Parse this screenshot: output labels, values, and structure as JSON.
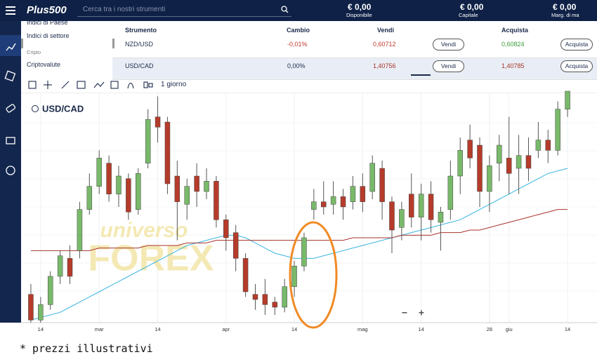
{
  "header": {
    "logo": "Plus500",
    "search_placeholder": "Cerca tra i nostri strumenti",
    "balances": [
      {
        "value": "€ 0,00",
        "label": "Disponibile"
      },
      {
        "value": "€ 0,00",
        "label": "Capitale"
      },
      {
        "value": "€ 0,00",
        "label": "Marg. di ma"
      }
    ]
  },
  "menu": {
    "items": [
      "Indici di Paese",
      "Indici di settore"
    ],
    "section": "Cripto",
    "section_item": "Criptovalute"
  },
  "table": {
    "columns": [
      "Strumento",
      "Cambio",
      "Vendi",
      "Acquista"
    ],
    "rows": [
      [
        "NZD/USD",
        "-0,01%",
        "0,60712",
        "Vendi",
        "0,60824",
        "Acquista"
      ],
      [
        "USD/CAD",
        "0,00%",
        "1,40756",
        "Vendi",
        "1,40785",
        "Acquista"
      ]
    ]
  },
  "toolbar": {
    "timeframe": "1 giorno"
  },
  "zoom": {
    "out": "−",
    "in": "+"
  },
  "footer": "* prezzi illustrativi",
  "chart_data": {
    "type": "candlestick",
    "title": "USD/CAD",
    "watermark": [
      "universo",
      "FOREX"
    ],
    "up_color": "#78b96a",
    "down_color": "#b53b2a",
    "ylim": [
      1.33,
      1.42
    ],
    "categories": [
      null,
      "14",
      null,
      null,
      null,
      null,
      null,
      "mar",
      null,
      null,
      null,
      null,
      null,
      "14",
      null,
      null,
      null,
      null,
      null,
      null,
      "apr",
      null,
      null,
      null,
      null,
      null,
      null,
      "14",
      null,
      null,
      null,
      null,
      null,
      null,
      "mag",
      null,
      null,
      null,
      null,
      null,
      "14",
      null,
      null,
      null,
      null,
      null,
      null,
      "28",
      null,
      "giu",
      null,
      null,
      null,
      null,
      null,
      "14"
    ],
    "open": [
      1.341,
      1.331,
      1.337,
      1.348,
      1.355,
      1.358,
      1.374,
      1.383,
      1.392,
      1.38,
      1.386,
      1.374,
      1.392,
      1.41,
      1.408,
      1.387,
      1.376,
      1.387,
      1.381,
      1.385,
      1.37,
      1.365,
      1.355,
      1.341,
      1.341,
      1.338,
      1.336,
      1.344,
      1.352,
      1.374,
      1.377,
      1.376,
      1.379,
      1.377,
      1.383,
      1.381,
      1.39,
      1.377,
      1.367,
      1.38,
      1.371,
      1.38,
      1.369,
      1.374,
      1.387,
      1.401,
      1.399,
      1.381,
      1.392,
      1.394,
      1.39,
      1.395,
      1.397,
      1.401,
      1.397,
      1.413
    ],
    "high": [
      1.345,
      1.34,
      1.35,
      1.358,
      1.36,
      1.377,
      1.388,
      1.397,
      1.395,
      1.391,
      1.388,
      1.39,
      1.413,
      1.418,
      1.41,
      1.393,
      1.386,
      1.392,
      1.39,
      1.387,
      1.372,
      1.368,
      1.357,
      1.345,
      1.347,
      1.34,
      1.347,
      1.354,
      1.365,
      1.382,
      1.385,
      1.385,
      1.382,
      1.387,
      1.388,
      1.395,
      1.393,
      1.379,
      1.377,
      1.388,
      1.384,
      1.385,
      1.375,
      1.393,
      1.402,
      1.407,
      1.402,
      1.395,
      1.403,
      1.41,
      1.403,
      1.402,
      1.408,
      1.405,
      1.416,
      1.42
    ],
    "low": [
      1.33,
      1.33,
      1.335,
      1.345,
      1.345,
      1.355,
      1.372,
      1.38,
      1.377,
      1.375,
      1.37,
      1.372,
      1.39,
      1.4,
      1.38,
      1.362,
      1.37,
      1.375,
      1.378,
      1.367,
      1.358,
      1.35,
      1.34,
      1.335,
      1.333,
      1.333,
      1.334,
      1.34,
      1.35,
      1.37,
      1.372,
      1.372,
      1.37,
      1.374,
      1.373,
      1.378,
      1.37,
      1.357,
      1.362,
      1.367,
      1.362,
      1.365,
      1.358,
      1.37,
      1.38,
      1.39,
      1.375,
      1.373,
      1.385,
      1.38,
      1.38,
      1.385,
      1.394,
      1.392,
      1.395,
      1.41
    ],
    "close": [
      1.331,
      1.337,
      1.348,
      1.356,
      1.348,
      1.374,
      1.383,
      1.394,
      1.38,
      1.387,
      1.373,
      1.388,
      1.409,
      1.406,
      1.384,
      1.377,
      1.383,
      1.381,
      1.385,
      1.37,
      1.363,
      1.355,
      1.342,
      1.339,
      1.337,
      1.336,
      1.344,
      1.352,
      1.363,
      1.377,
      1.375,
      1.379,
      1.375,
      1.383,
      1.377,
      1.392,
      1.377,
      1.366,
      1.374,
      1.371,
      1.38,
      1.37,
      1.373,
      1.387,
      1.397,
      1.394,
      1.381,
      1.391,
      1.399,
      1.388,
      1.395,
      1.39,
      1.401,
      1.397,
      1.413,
      1.42
    ],
    "overlays": [
      {
        "color": "#3bb5e0",
        "values": [
          1.331,
          1.332,
          1.333,
          1.334,
          1.336,
          1.338,
          1.34,
          1.342,
          1.344,
          1.346,
          1.348,
          1.35,
          1.352,
          1.354,
          1.356,
          1.358,
          1.36,
          1.361,
          1.362,
          1.363,
          1.364,
          1.364,
          1.363,
          1.361,
          1.359,
          1.357,
          1.356,
          1.355,
          1.355,
          1.355,
          1.356,
          1.357,
          1.358,
          1.359,
          1.36,
          1.361,
          1.362,
          1.363,
          1.364,
          1.365,
          1.366,
          1.367,
          1.368,
          1.369,
          1.37,
          1.372,
          1.374,
          1.376,
          1.378,
          1.38,
          1.382,
          1.384,
          1.386,
          1.388,
          1.389,
          1.39
        ]
      },
      {
        "color": "#a8332a",
        "values": [
          1.358,
          1.358,
          1.358,
          1.358,
          1.358,
          1.358,
          1.358,
          1.359,
          1.359,
          1.359,
          1.359,
          1.359,
          1.36,
          1.36,
          1.36,
          1.36,
          1.361,
          1.361,
          1.361,
          1.362,
          1.362,
          1.362,
          1.362,
          1.362,
          1.362,
          1.362,
          1.362,
          1.362,
          1.362,
          1.362,
          1.362,
          1.362,
          1.362,
          1.363,
          1.363,
          1.363,
          1.363,
          1.363,
          1.364,
          1.364,
          1.364,
          1.364,
          1.365,
          1.365,
          1.365,
          1.366,
          1.366,
          1.367,
          1.368,
          1.369,
          1.37,
          1.371,
          1.372,
          1.373,
          1.374,
          1.374
        ]
      }
    ]
  }
}
